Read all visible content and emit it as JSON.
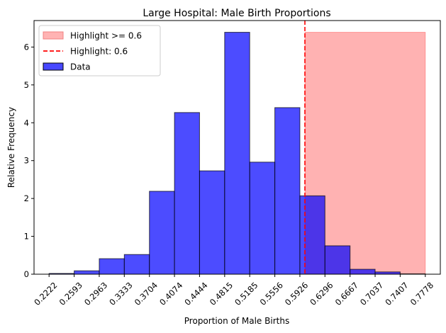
{
  "chart_data": {
    "type": "bar",
    "title": "Large Hospital: Male Birth Proportions",
    "xlabel": "Proportion of Male Births",
    "ylabel": "Relative Frequency",
    "xlim": [
      0.2,
      0.8
    ],
    "ylim": [
      0,
      6.7
    ],
    "bin_edges": [
      0.2222,
      0.2593,
      0.2963,
      0.3333,
      0.3704,
      0.4074,
      0.4444,
      0.4815,
      0.5185,
      0.5556,
      0.5926,
      0.6296,
      0.6667,
      0.7037,
      0.7407,
      0.7778
    ],
    "x_tick_labels": [
      "0.2222",
      "0.2593",
      "0.2963",
      "0.3333",
      "0.3704",
      "0.4074",
      "0.4444",
      "0.4815",
      "0.5185",
      "0.5556",
      "0.5926",
      "0.6296",
      "0.6667",
      "0.7037",
      "0.7407",
      "0.7778"
    ],
    "y_ticks": [
      0,
      1,
      2,
      3,
      4,
      5,
      6
    ],
    "y_tick_labels": [
      "0",
      "1",
      "2",
      "3",
      "4",
      "5",
      "6"
    ],
    "values": [
      0.02,
      0.09,
      0.41,
      0.52,
      2.19,
      4.27,
      2.73,
      6.39,
      2.96,
      4.4,
      2.07,
      0.75,
      0.13,
      0.06,
      0.01
    ],
    "threshold": 0.6,
    "highlight_region": {
      "x_start": 0.6,
      "x_end": 0.7778,
      "height": 6.39
    },
    "colors": {
      "bar_fill": "#0000ff",
      "bar_edge": "#000000",
      "highlight_fill": "#ff0000",
      "threshold_line": "#ff0000"
    },
    "legend": {
      "position": "upper-left",
      "entries": [
        {
          "label": "Highlight >= 0.6",
          "kind": "patch",
          "color": "#ffb3b3",
          "edge": "#f08080"
        },
        {
          "label": "Highlight: 0.6",
          "kind": "dashed-line",
          "color": "#ff0000"
        },
        {
          "label": "Data",
          "kind": "patch",
          "color": "#4747ff",
          "edge": "#000000"
        }
      ]
    }
  }
}
